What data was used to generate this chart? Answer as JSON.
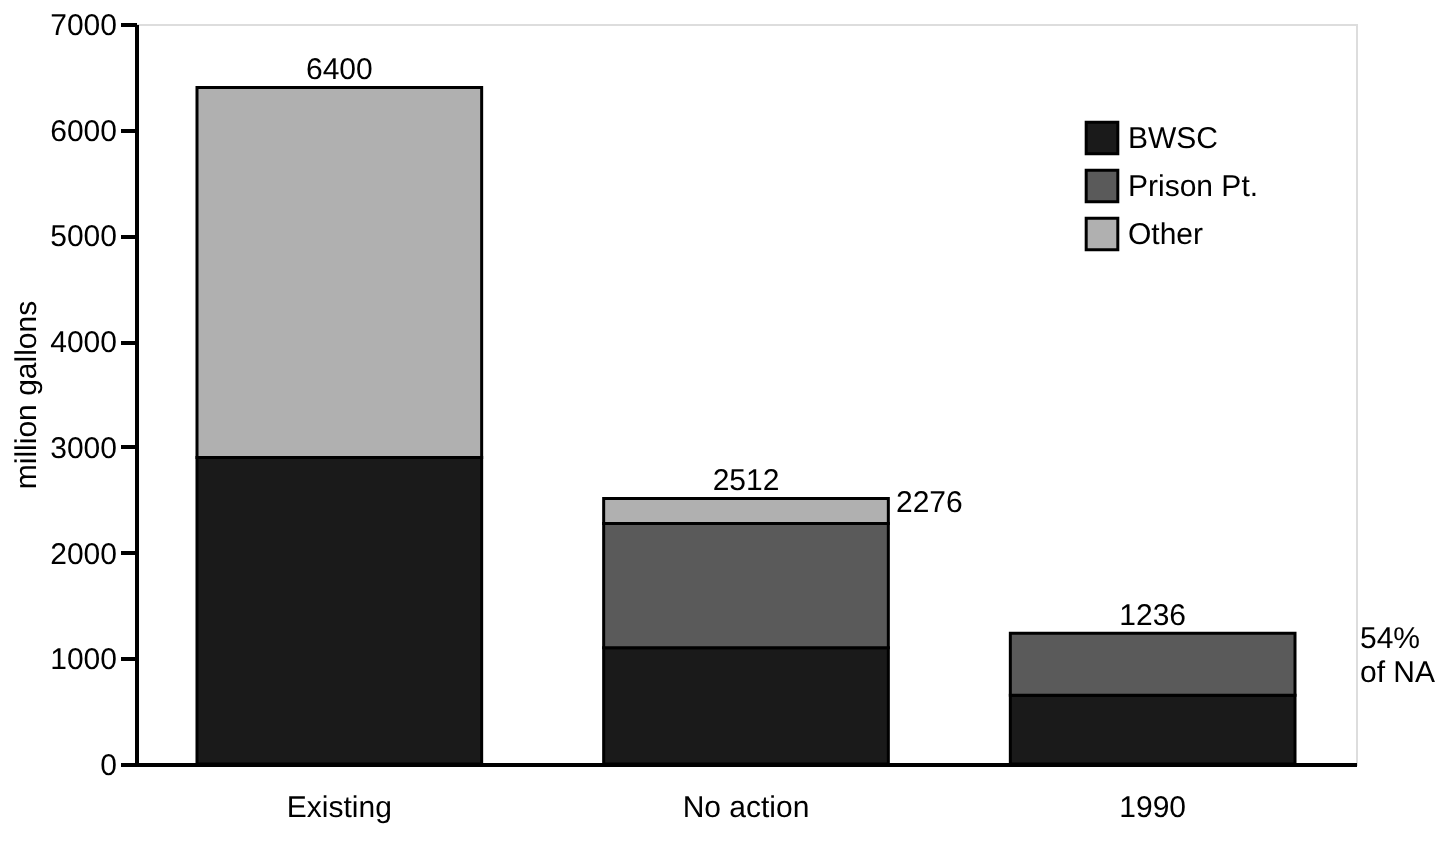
{
  "chart_data": {
    "type": "bar",
    "stacked": true,
    "ylabel": "million gallons",
    "categories": [
      "Existing",
      "No action",
      "1990"
    ],
    "series": [
      {
        "name": "BWSC",
        "color": "#1a1a1a",
        "values": [
          2900,
          1100,
          650
        ]
      },
      {
        "name": "Prison Pt.",
        "color": "#5a5a5a",
        "values": [
          null,
          1176,
          586
        ]
      },
      {
        "name": "Other",
        "color": "#b0b0b0",
        "values": [
          3500,
          236,
          null
        ]
      }
    ],
    "totals": [
      "6400",
      "2512",
      "1236"
    ],
    "annotations": [
      "2276",
      "54%\nof NA"
    ],
    "ylim": [
      0,
      7000
    ],
    "yticks": [
      0,
      1000,
      2000,
      3000,
      4000,
      5000,
      6000,
      7000
    ],
    "grid": false,
    "legend": "top right"
  }
}
